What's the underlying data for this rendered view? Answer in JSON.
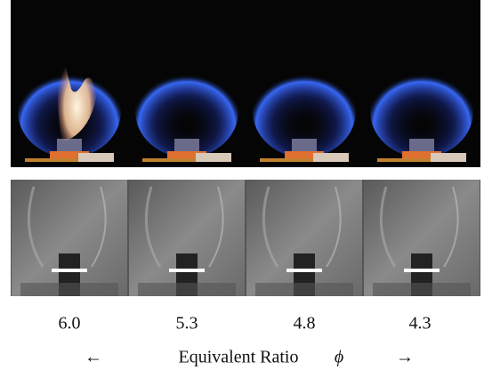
{
  "panels": [
    {
      "label": "6.0"
    },
    {
      "label": "5.3"
    },
    {
      "label": "4.8"
    },
    {
      "label": "4.3"
    }
  ],
  "axis": {
    "left_arrow": "←",
    "label": "Equivalent Ratio",
    "symbol": "ϕ",
    "right_arrow": "→"
  }
}
